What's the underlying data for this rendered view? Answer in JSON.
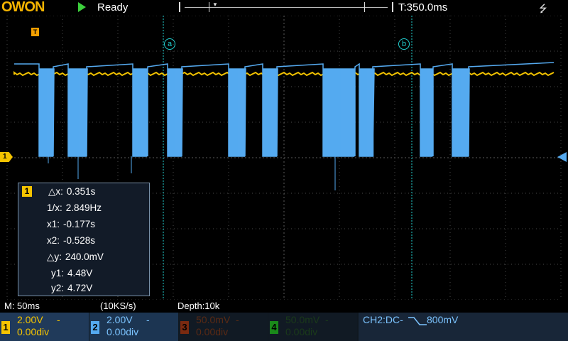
{
  "header": {
    "logo": "OWON",
    "status": "Ready",
    "timebase": "T:350.0ms"
  },
  "icons": {
    "run": "play-icon",
    "usb": "usb-icon",
    "trigger_position": "trigger-position-icon",
    "ch1_marker": "ch1-offset-marker-icon",
    "trigger_level": "trigger-level-icon"
  },
  "colors": {
    "ch1": "#f5c400",
    "ch2": "#55aaf0",
    "cursor": "#22d0d0",
    "grid": "#2a2a2a",
    "logo": "#f5b400"
  },
  "markers": {
    "trigger_position_label": "T",
    "ch1_label": "1",
    "cursor_a": "a",
    "cursor_b": "b"
  },
  "measurement": {
    "channel": "1",
    "rows": [
      {
        "key": "△x:",
        "value": "0.351s"
      },
      {
        "key": "1/x:",
        "value": "2.849Hz"
      },
      {
        "key": "x1:",
        "value": "-0.177s"
      },
      {
        "key": "x2:",
        "value": "-0.528s"
      },
      {
        "key": "△y:",
        "value": "240.0mV"
      },
      {
        "key": "y1:",
        "value": "4.48V"
      },
      {
        "key": "y2:",
        "value": "4.72V"
      }
    ]
  },
  "info": {
    "main_timebase": "M: 50ms",
    "sample_rate": "(10KS/s)",
    "depth": "Depth:10k"
  },
  "channels": [
    {
      "num": "1",
      "volts": "2.00V",
      "offset": "0.00div",
      "coupling": "-"
    },
    {
      "num": "2",
      "volts": "2.00V",
      "offset": "0.00div",
      "coupling": "-"
    },
    {
      "num": "3",
      "volts": "50.0mV",
      "offset": "0.00div",
      "coupling": "-"
    },
    {
      "num": "4",
      "volts": "50.0mV",
      "offset": "0.00div",
      "coupling": "-"
    }
  ],
  "trigger": {
    "text": "CH2:DC-",
    "level": "800mV",
    "edge_icon": "falling-edge-icon"
  }
}
